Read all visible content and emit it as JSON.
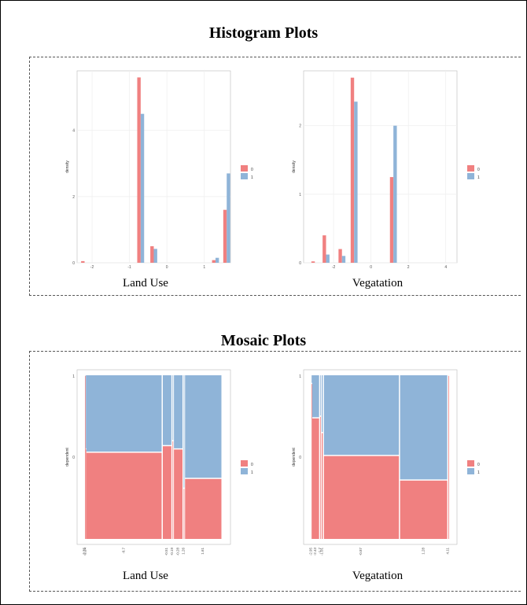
{
  "histogram_section": {
    "title": "Histogram Plots"
  },
  "mosaic_section": {
    "title": "Mosaic Plots"
  },
  "colors": {
    "class0": "#f08080",
    "class1": "#8fb4d8"
  },
  "chart_data": [
    {
      "type": "bar",
      "caption": "Land Use",
      "ylabel": "density",
      "xlim": [
        -2.4,
        1.7
      ],
      "ylim": [
        0,
        5.8
      ],
      "xticks": [
        -2,
        -1,
        0,
        1
      ],
      "yticks": [
        0,
        2,
        4
      ],
      "legend": [
        "0",
        "1"
      ],
      "legend_position": "right",
      "grid": true,
      "series": [
        {
          "name": "0",
          "bins": [
            {
              "x": -2.2,
              "y": 0.05
            },
            {
              "x": -0.7,
              "y": 5.6
            },
            {
              "x": -0.35,
              "y": 0.5
            },
            {
              "x": 1.3,
              "y": 0.08
            },
            {
              "x": 1.6,
              "y": 1.6
            }
          ]
        },
        {
          "name": "1",
          "bins": [
            {
              "x": -0.7,
              "y": 4.5
            },
            {
              "x": -0.35,
              "y": 0.42
            },
            {
              "x": 1.3,
              "y": 0.15
            },
            {
              "x": 1.6,
              "y": 2.7
            }
          ]
        }
      ]
    },
    {
      "type": "bar",
      "caption": "Vegatation",
      "ylabel": "density",
      "xlim": [
        -3.6,
        4.6
      ],
      "ylim": [
        0,
        2.8
      ],
      "xticks": [
        -2,
        0,
        2,
        4
      ],
      "yticks": [
        0,
        1,
        2
      ],
      "legend": [
        "0",
        "1"
      ],
      "legend_position": "right",
      "grid": true,
      "series": [
        {
          "name": "0",
          "bins": [
            {
              "x": -3.0,
              "y": 0.02
            },
            {
              "x": -2.4,
              "y": 0.4
            },
            {
              "x": -1.55,
              "y": 0.2
            },
            {
              "x": -0.9,
              "y": 2.7
            },
            {
              "x": 1.2,
              "y": 1.25
            }
          ]
        },
        {
          "name": "1",
          "bins": [
            {
              "x": -2.4,
              "y": 0.12
            },
            {
              "x": -1.55,
              "y": 0.1
            },
            {
              "x": -0.9,
              "y": 2.35
            },
            {
              "x": 1.2,
              "y": 2.0
            }
          ]
        }
      ]
    },
    {
      "type": "mosaic",
      "caption": "Land Use",
      "ylabel": "dependent",
      "legend": [
        "0",
        "1"
      ],
      "legend_position": "right",
      "yticks": [
        "0",
        "1"
      ],
      "columns": [
        {
          "label": "-2.35",
          "width": 0.005,
          "p0": 1.0
        },
        {
          "label": "-2.24",
          "width": 0.005,
          "p0": 0.55
        },
        {
          "label": "-0.7",
          "width": 0.55,
          "p0": 0.53
        },
        {
          "label": "-0.51",
          "width": 0.07,
          "p0": 0.57
        },
        {
          "label": "-0.19",
          "width": 0.01,
          "p0": 0.6
        },
        {
          "label": "-0.28",
          "width": 0.07,
          "p0": 0.55
        },
        {
          "label": "1.26",
          "width": 0.01,
          "p0": 0.31
        },
        {
          "label": "1.61",
          "width": 0.27,
          "p0": 0.37
        }
      ]
    },
    {
      "type": "mosaic",
      "caption": "Vegatation",
      "ylabel": "dependent",
      "legend": [
        "0",
        "1"
      ],
      "legend_position": "right",
      "yticks": [
        "0",
        "1"
      ],
      "columns": [
        {
          "label": "-2.95",
          "width": 0.005,
          "p0": 0.95
        },
        {
          "label": "-2.43",
          "width": 0.055,
          "p0": 0.74
        },
        {
          "label": "-1.7",
          "width": 0.01,
          "p0": 0.75
        },
        {
          "label": "-1.01",
          "width": 0.015,
          "p0": 0.65
        },
        {
          "label": "-0.87",
          "width": 0.52,
          "p0": 0.51
        },
        {
          "label": "1.28",
          "width": 0.33,
          "p0": 0.36
        },
        {
          "label": "4.11",
          "width": 0.005,
          "p0": 1.0
        }
      ]
    }
  ]
}
